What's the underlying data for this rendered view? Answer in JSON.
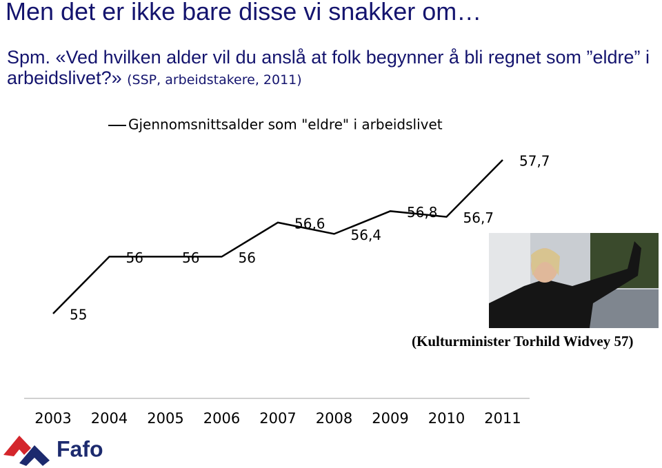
{
  "title": "Men det er ikke bare disse vi snakker om…",
  "question": "Spm. «Ved hvilken alder vil du anslå at folk begynner å bli regnet som ”eldre” i arbeidslivet?»",
  "source": "(SSP, arbeidstakere, 2011)",
  "photo_caption": "(Kulturminister Torhild Widvey 57)",
  "logo": "Fafo",
  "chart_data": {
    "type": "line",
    "categories": [
      "2003",
      "2004",
      "2005",
      "2006",
      "2007",
      "2008",
      "2009",
      "2010",
      "2011"
    ],
    "series": [
      {
        "name": "Gjennomsnittsalder som \"eldre\" i arbeidslivet",
        "color": "#000000",
        "values": [
          55,
          56,
          56,
          56,
          56.6,
          56.4,
          56.8,
          56.7,
          57.7
        ],
        "value_labels": [
          "55",
          "56",
          "56",
          "56",
          "56,6",
          "56,4",
          "56,8",
          "56,7",
          "57,7"
        ]
      }
    ]
  }
}
